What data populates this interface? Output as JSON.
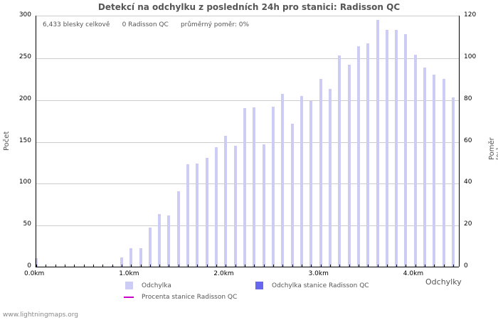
{
  "title": "Detekcí na odchylku z posledních 24h pro stanici: Radisson QC",
  "stats": {
    "total": "6,433 blesky celkově",
    "station": "0 Radisson QC",
    "ratio": "průměrný poměr: 0%"
  },
  "y_left_label": "Počet",
  "y_right_label": "Poměr [%]",
  "x_label": "Odchylky",
  "legend": {
    "item1": "Odchylka",
    "item2": "Odchylka stanice Radisson QC",
    "item3": "Procenta stanice Radisson QC"
  },
  "footer": "www.lightningmaps.org",
  "colors": {
    "bar": "#ccccf5",
    "station_bar": "#6666ee",
    "percent_line": "#cc00cc"
  },
  "chart_data": {
    "type": "bar",
    "title": "Detekcí na odchylku z posledních 24h pro stanici: Radisson QC",
    "xlabel": "Odchylky",
    "ylabel": "Počet",
    "y2label": "Poměr [%]",
    "ylim": [
      0,
      300
    ],
    "y2lim": [
      0,
      120
    ],
    "y_ticks": [
      0,
      50,
      100,
      150,
      200,
      250,
      300
    ],
    "y2_ticks": [
      0,
      20,
      40,
      60,
      80,
      100,
      120
    ],
    "x_tick_labels": [
      "0.0km",
      "1.0km",
      "2.0km",
      "3.0km",
      "4.0km"
    ],
    "x": [
      0.0,
      0.1,
      0.2,
      0.3,
      0.4,
      0.5,
      0.6,
      0.7,
      0.8,
      0.9,
      1.0,
      1.1,
      1.2,
      1.3,
      1.4,
      1.5,
      1.6,
      1.7,
      1.8,
      1.9,
      2.0,
      2.1,
      2.2,
      2.3,
      2.4,
      2.5,
      2.6,
      2.7,
      2.8,
      2.9,
      3.0,
      3.1,
      3.2,
      3.3,
      3.4,
      3.5,
      3.6,
      3.7,
      3.8,
      3.9,
      4.0,
      4.1,
      4.2,
      4.3,
      4.4
    ],
    "series": [
      {
        "name": "Odchylka",
        "values": [
          11,
          0,
          1,
          0,
          0,
          0,
          0,
          1,
          2,
          12,
          23,
          23,
          48,
          64,
          62,
          91,
          123,
          124,
          131,
          144,
          157,
          145,
          190,
          191,
          147,
          192,
          207,
          172,
          205,
          199,
          225,
          213,
          253,
          242,
          264,
          268,
          296,
          284,
          284,
          279,
          254,
          239,
          230,
          225,
          203
        ]
      },
      {
        "name": "Odchylka stanice Radisson QC",
        "values": [
          0,
          0,
          0,
          0,
          0,
          0,
          0,
          0,
          0,
          0,
          0,
          0,
          0,
          0,
          0,
          0,
          0,
          0,
          0,
          0,
          0,
          0,
          0,
          0,
          0,
          0,
          0,
          0,
          0,
          0,
          0,
          0,
          0,
          0,
          0,
          0,
          0,
          0,
          0,
          0,
          0,
          0,
          0,
          0,
          0
        ]
      },
      {
        "name": "Procenta stanice Radisson QC",
        "values": [
          0,
          0,
          0,
          0,
          0,
          0,
          0,
          0,
          0,
          0,
          0,
          0,
          0,
          0,
          0,
          0,
          0,
          0,
          0,
          0,
          0,
          0,
          0,
          0,
          0,
          0,
          0,
          0,
          0,
          0,
          0,
          0,
          0,
          0,
          0,
          0,
          0,
          0,
          0,
          0,
          0,
          0,
          0,
          0,
          0
        ]
      }
    ],
    "legend_position": "bottom",
    "grid": true
  }
}
